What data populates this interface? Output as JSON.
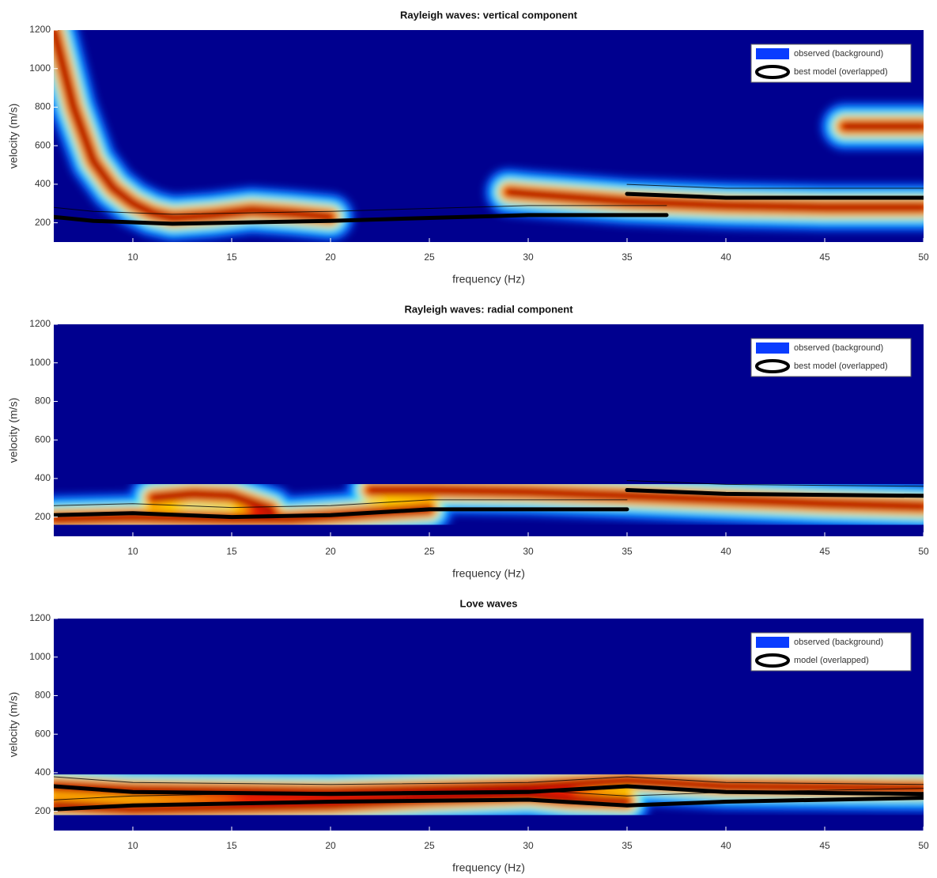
{
  "chart_data": [
    {
      "type": "heatmap",
      "title": "Rayleigh waves: vertical component",
      "x_label": "frequency (Hz)",
      "y_label": "velocity (m/s)",
      "xlim": [
        6,
        50
      ],
      "ylim": [
        100,
        1200
      ],
      "xticks": [
        10,
        15,
        20,
        25,
        30,
        35,
        40,
        45,
        50
      ],
      "yticks": [
        200,
        400,
        600,
        800,
        1000,
        1200
      ],
      "colormap": "jet",
      "background": "#00008f",
      "legend": "upper right",
      "series": [
        {
          "name": "observed (background)",
          "color": "#0a3cff",
          "x": [
            6,
            7,
            8,
            9,
            10,
            11,
            12,
            14,
            16,
            18,
            20,
            22,
            29,
            30,
            35,
            40,
            45,
            50,
            50,
            46,
            48,
            50
          ],
          "values": [
            1200,
            800,
            520,
            380,
            300,
            250,
            225,
            240,
            265,
            250,
            230,
            null,
            360,
            350,
            310,
            290,
            280,
            280,
            null,
            700,
            700,
            700
          ]
        },
        {
          "name": "best model (overlapped)",
          "color": "#000000",
          "x": [
            6,
            8,
            12,
            20,
            25,
            30,
            37,
            38,
            35,
            40,
            50
          ],
          "values": [
            230,
            210,
            195,
            210,
            225,
            240,
            240,
            null,
            350,
            330,
            330
          ]
        }
      ]
    },
    {
      "type": "heatmap",
      "title": "Rayleigh waves: radial component",
      "x_label": "frequency (Hz)",
      "y_label": "velocity (m/s)",
      "xlim": [
        6,
        50
      ],
      "ylim": [
        100,
        1200
      ],
      "xticks": [
        10,
        15,
        20,
        25,
        30,
        35,
        40,
        45,
        50
      ],
      "yticks": [
        200,
        400,
        600,
        800,
        1000,
        1200
      ],
      "colormap": "jet",
      "background": "#00008f",
      "legend": "upper right",
      "series": [
        {
          "name": "observed (background)",
          "color": "#0a3cff",
          "x": [
            11,
            13,
            15,
            17,
            18,
            22,
            25,
            30,
            35,
            40,
            45,
            50,
            50,
            6,
            10,
            15,
            18,
            22,
            25
          ],
          "values": [
            300,
            320,
            310,
            240,
            null,
            340,
            340,
            330,
            310,
            290,
            270,
            255,
            null,
            190,
            200,
            190,
            190,
            220,
            240
          ]
        },
        {
          "name": "best model (overlapped)",
          "color": "#000000",
          "x": [
            6,
            10,
            15,
            20,
            25,
            30,
            35,
            36,
            35,
            40,
            50
          ],
          "values": [
            210,
            220,
            200,
            210,
            240,
            240,
            240,
            null,
            340,
            320,
            310
          ]
        }
      ]
    },
    {
      "type": "heatmap",
      "title": "Love waves",
      "x_label": "frequency (Hz)",
      "y_label": "velocity (m/s)",
      "xlim": [
        6,
        50
      ],
      "ylim": [
        100,
        1200
      ],
      "xticks": [
        10,
        15,
        20,
        25,
        30,
        35,
        40,
        45,
        50
      ],
      "yticks": [
        200,
        400,
        600,
        800,
        1000,
        1200
      ],
      "colormap": "jet",
      "background": "#00008f",
      "legend": "upper right",
      "series": [
        {
          "name": "observed (background)",
          "color": "#0a3cff",
          "x": [
            6,
            10,
            15,
            20,
            25,
            30,
            32,
            35,
            36,
            6,
            10,
            20,
            30,
            35,
            40,
            50
          ],
          "values": [
            230,
            210,
            220,
            230,
            260,
            280,
            260,
            250,
            null,
            330,
            310,
            300,
            330,
            360,
            330,
            320
          ]
        },
        {
          "name": "model (overlapped)",
          "color": "#000000",
          "x": [
            6,
            10,
            20,
            30,
            35,
            40,
            50,
            51,
            6,
            10,
            20,
            30,
            35,
            40,
            50
          ],
          "values": [
            330,
            300,
            290,
            300,
            330,
            300,
            290,
            null,
            210,
            230,
            250,
            260,
            230,
            250,
            270
          ]
        }
      ]
    }
  ]
}
